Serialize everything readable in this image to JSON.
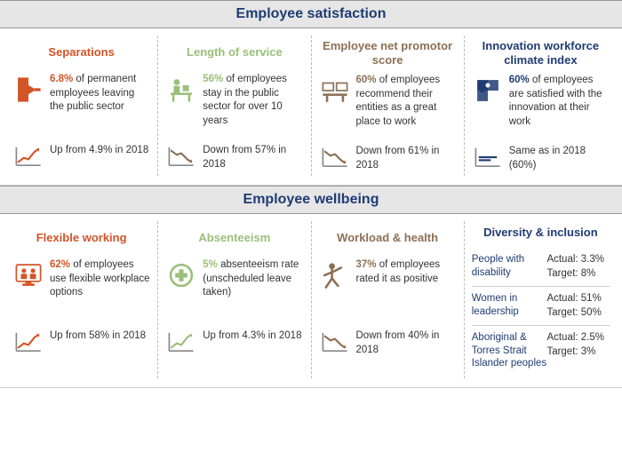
{
  "colors": {
    "orange": "#d35427",
    "green": "#9abf7a",
    "brown": "#8c7055",
    "navy": "#1f3c73",
    "grayHeader": "#e6e6e6",
    "textDark": "#333333",
    "trendUp": "#d35427",
    "trendDown": "#8c7055",
    "trendUpGreen": "#9abf7a",
    "trendFlat": "#1f3c73"
  },
  "sections": [
    {
      "title": "Employee satisfaction",
      "titleColor": "#1f3c73",
      "columns": [
        {
          "key": "separations",
          "heading": "Separations",
          "headingColor": "#d35427",
          "icon": "door-exit",
          "iconColor": "#d35427",
          "lead": "6.8%",
          "body": " of permanent employees leaving the public sector",
          "trendIcon": "trend-up",
          "trendColor": "#d35427",
          "trendText": "Up from 4.9% in 2018"
        },
        {
          "key": "length-of-service",
          "heading": "Length of service",
          "headingColor": "#9abf7a",
          "icon": "desk-person",
          "iconColor": "#9abf7a",
          "lead": "56%",
          "body": " of employees stay in the public sector for over 10 years",
          "trendIcon": "trend-down",
          "trendColor": "#8c7055",
          "trendText": "Down from 57% in 2018"
        },
        {
          "key": "nps",
          "heading": "Employee net promotor score",
          "headingColor": "#8c7055",
          "icon": "monitors",
          "iconColor": "#8c7055",
          "lead": "60%",
          "body": " of employees recommend their entities as a great place to work",
          "trendIcon": "trend-down",
          "trendColor": "#8c7055",
          "trendText": "Down from 61% in 2018"
        },
        {
          "key": "innovation",
          "heading": "Innovation workforce climate index",
          "headingColor": "#1f3c73",
          "icon": "puzzle",
          "iconColor": "#1f3c73",
          "lead": "60%",
          "body": " of employees are satisfied with the innovation at their work",
          "trendIcon": "trend-flat",
          "trendColor": "#1f3c73",
          "trendText": "Same as in 2018 (60%)"
        }
      ]
    },
    {
      "title": "Employee wellbeing",
      "titleColor": "#1f3c73",
      "columns": [
        {
          "key": "flexible-working",
          "heading": "Flexible working",
          "headingColor": "#d35427",
          "icon": "screen-people",
          "iconColor": "#d35427",
          "lead": "62%",
          "body": " of employees use flexible workplace options",
          "trendIcon": "trend-up",
          "trendColor": "#d35427",
          "trendText": "Up from 58% in 2018"
        },
        {
          "key": "absenteeism",
          "heading": "Absenteeism",
          "headingColor": "#9abf7a",
          "icon": "medical-cross",
          "iconColor": "#9abf7a",
          "lead": "5%",
          "body": " absenteeism rate (unscheduled leave taken)",
          "trendIcon": "trend-up",
          "trendColor": "#9abf7a",
          "trendText": "Up from 4.3% in 2018"
        },
        {
          "key": "workload-health",
          "heading": "Workload & health",
          "headingColor": "#8c7055",
          "icon": "stretch-person",
          "iconColor": "#8c7055",
          "lead": "37%",
          "body": " of employees rated it as positive",
          "trendIcon": "trend-down",
          "trendColor": "#8c7055",
          "trendText": "Down from 40% in 2018"
        }
      ],
      "diversity": {
        "heading": "Diversity & inclusion",
        "headingColor": "#1f3c73",
        "labelColor": "#1f3c73",
        "rows": [
          {
            "label": "People with disability",
            "actual": "Actual: 3.3%",
            "target": "Target: 8%"
          },
          {
            "label": "Women in leadership",
            "actual": "Actual: 51%",
            "target": "Target: 50%"
          },
          {
            "label": "Aboriginal & Torres Strait Islander peoples",
            "actual": "Actual: 2.5%",
            "target": "Target: 3%"
          }
        ]
      }
    }
  ]
}
